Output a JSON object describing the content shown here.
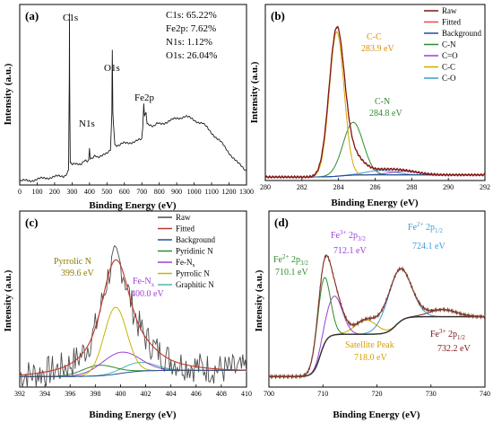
{
  "chart_data": [
    {
      "panel_label": "(a)",
      "type": "line",
      "xlabel": "Binding Energy (eV)",
      "ylabel": "Intensity (a.u.)",
      "xlim": [
        0,
        1300
      ],
      "xticks": [
        0,
        100,
        200,
        300,
        400,
        500,
        600,
        700,
        800,
        900,
        1000,
        1100,
        1200,
        1300
      ],
      "peak_labels": [
        {
          "text": "C1s",
          "x": 285
        },
        {
          "text": "N1s",
          "x": 400
        },
        {
          "text": "O1s",
          "x": 531
        },
        {
          "text": "Fe2p",
          "x": 711
        }
      ],
      "composition": [
        "C1s: 65.22%",
        "Fe2p: 7.62%",
        "N1s: 1.12%",
        "O1s: 26.04%"
      ],
      "series": [
        {
          "name": "survey",
          "color": "#1a1a1a",
          "x": [
            0,
            50,
            100,
            150,
            200,
            250,
            270,
            280,
            284,
            285,
            286,
            290,
            300,
            350,
            395,
            400,
            405,
            450,
            500,
            520,
            528,
            531,
            534,
            545,
            600,
            650,
            700,
            705,
            711,
            715,
            724,
            730,
            760,
            800,
            850,
            900,
            950,
            1000,
            1050,
            1100,
            1150,
            1200,
            1250,
            1300
          ],
          "y": [
            2,
            2.5,
            3,
            4,
            4.5,
            5,
            6,
            9,
            60,
            95,
            60,
            12,
            11,
            12,
            14,
            20,
            15,
            16,
            17,
            20,
            40,
            75,
            40,
            22,
            23,
            24,
            25,
            32,
            45,
            38,
            41,
            34,
            33,
            34,
            35,
            37,
            38,
            36,
            34,
            29,
            24,
            18,
            12,
            8
          ]
        }
      ]
    },
    {
      "panel_label": "(b)",
      "type": "line",
      "xlabel": "Binding Energy (eV)",
      "ylabel": "Intensity (a.u.)",
      "xlim": [
        280,
        292
      ],
      "xticks": [
        280,
        282,
        284,
        286,
        288,
        290,
        292
      ],
      "legend": [
        "Raw",
        "Fitted",
        "Background",
        "C-N",
        "C=O",
        "C-C",
        "C-O"
      ],
      "annotations": [
        {
          "text": "C-C",
          "color": "#e08a00",
          "x": 284.3
        },
        {
          "text": "283.9 eV",
          "color": "#e08a00",
          "x": 284.3
        },
        {
          "text": "C-N",
          "color": "#2e8b2e",
          "x": 285.7
        },
        {
          "text": "284.8 eV",
          "color": "#2e8b2e",
          "x": 285.7
        }
      ],
      "series": [
        {
          "name": "Raw",
          "color": "#7a1414",
          "center": 283.9,
          "height": 92,
          "width": 0.45
        },
        {
          "name": "Fitted",
          "color": "#e74c3c",
          "center": 283.9,
          "height": 91,
          "width": 0.45
        },
        {
          "name": "Background",
          "color": "#1f4fa0",
          "level": 2
        },
        {
          "name": "C-N",
          "color": "#2e8b2e",
          "center": 284.8,
          "height": 30,
          "width": 0.55
        },
        {
          "name": "C=O",
          "color": "#9b3fd8",
          "center": 287.6,
          "height": 2,
          "width": 0.8
        },
        {
          "name": "C-C",
          "color": "#d4a800",
          "center": 283.9,
          "height": 82,
          "width": 0.4
        },
        {
          "name": "C-O",
          "color": "#3d9bd1",
          "center": 286.3,
          "height": 2.5,
          "width": 0.8
        }
      ]
    },
    {
      "panel_label": "(c)",
      "type": "line",
      "xlabel": "Binding Energy (eV)",
      "ylabel": "Intensity (a.u.)",
      "xlim": [
        392,
        410
      ],
      "xticks": [
        392,
        394,
        396,
        398,
        400,
        402,
        404,
        406,
        408,
        410
      ],
      "legend": [
        "Raw",
        "Fitted",
        "Background",
        "Pyridinic N",
        "Fe-N",
        "Pyrrolic N",
        "Graphitic N"
      ],
      "annotations": [
        {
          "text": "Pyrrolic N",
          "color": "#8c7a00",
          "x": 398.3
        },
        {
          "text": "399.6 eV",
          "color": "#8c7a00",
          "x": 398.3
        },
        {
          "text": "Fe-N",
          "color": "#9b3fd8",
          "x": 401.6
        },
        {
          "text": "400.0 eV",
          "color": "#9b3fd8",
          "x": 401.6
        }
      ],
      "series": [
        {
          "name": "Raw",
          "color": "#4d4d4d"
        },
        {
          "name": "Fitted",
          "color": "#c0392b",
          "center": 399.6,
          "height": 48,
          "width": 1.6
        },
        {
          "name": "Background",
          "color": "#1f4fa0",
          "level": 6
        },
        {
          "name": "Pyridinic N",
          "color": "#2e8b2e",
          "center": 398.3,
          "height": 6,
          "width": 1.3
        },
        {
          "name": "Fe-N",
          "color": "#9b3fd8",
          "center": 400.0,
          "height": 12,
          "width": 1.5
        },
        {
          "name": "Pyrrolic N",
          "color": "#c8b400",
          "center": 399.6,
          "height": 38,
          "width": 0.9
        },
        {
          "name": "Graphitic N",
          "color": "#4fb5b5",
          "center": 401.5,
          "height": 5,
          "width": 1.3
        }
      ]
    },
    {
      "panel_label": "(d)",
      "type": "line",
      "xlabel": "Binding Energy (eV)",
      "ylabel": "Intensity (a.u.)",
      "xlim": [
        700,
        740
      ],
      "xticks": [
        700,
        710,
        720,
        730,
        740
      ],
      "annotations": [
        {
          "text": "Fe",
          "sup": "2+",
          "rest": " 2p",
          "sub": "3/2",
          "energy": "710.1 eV",
          "color": "#2e8b2e"
        },
        {
          "text": "Fe",
          "sup": "3+",
          "rest": " 2p",
          "sub": "3/2",
          "energy": "712.1 eV",
          "color": "#9b3fd8"
        },
        {
          "text": "Fe",
          "sup": "2+",
          "rest": " 2p",
          "sub": "1/2",
          "energy": "724.1 eV",
          "color": "#3d9bd1"
        },
        {
          "text": "Fe",
          "sup": "3+",
          "rest": " 2p",
          "sub": "1/2",
          "energy": "732.2 eV",
          "color": "#7a1414"
        },
        {
          "text": "Satellite Peak",
          "energy": "718.0 eV",
          "color": "#d4a000"
        }
      ],
      "series": [
        {
          "name": "Raw",
          "color": "#7a3a2a"
        },
        {
          "name": "Fitted",
          "color": "#d9534f"
        },
        {
          "name": "Background",
          "color": "#333333"
        },
        {
          "name": "Fe2+ 2p3/2",
          "color": "#2e8b2e",
          "center": 710.1,
          "height": 38,
          "width": 1.2
        },
        {
          "name": "Fe3+ 2p3/2",
          "color": "#9b3fd8",
          "center": 712.1,
          "height": 22,
          "width": 1.5
        },
        {
          "name": "Fe2+ 2p1/2",
          "color": "#3d9bd1",
          "center": 724.1,
          "height": 30,
          "width": 2.2
        },
        {
          "name": "Fe3+ 2p1/2",
          "color": "#7a1414",
          "center": 732.2,
          "height": 4,
          "width": 2.5
        },
        {
          "name": "Satellite Peak",
          "color": "#d4a000",
          "center": 718.0,
          "height": 8,
          "width": 2.0
        }
      ]
    }
  ]
}
